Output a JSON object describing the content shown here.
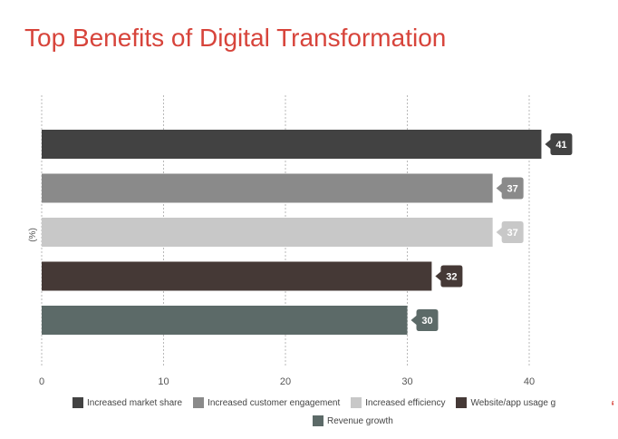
{
  "chart_data": {
    "type": "bar",
    "orientation": "horizontal",
    "title": "Top Benefits of Digital Transformation",
    "ylabel": "(%)",
    "xlabel": "",
    "xlim": [
      0,
      45
    ],
    "xticks": [
      0,
      10,
      20,
      30,
      40
    ],
    "grid": true,
    "legend_position": "bottom",
    "series": [
      {
        "name": "Increased market share",
        "value": 41,
        "color": "#424242"
      },
      {
        "name": "Increased customer engagement",
        "value": 37,
        "color": "#8a8a8a"
      },
      {
        "name": "Increased efficiency",
        "value": 37,
        "color": "#c8c8c8"
      },
      {
        "name": "Website/app usage g",
        "value": 32,
        "color": "#453936"
      },
      {
        "name": "Revenue growth",
        "value": 30,
        "color": "#5c6a68"
      }
    ]
  },
  "colors": {
    "title": "#d7443b",
    "grid": "#b9b9b9",
    "axis_text": "#555555"
  },
  "corner_mark": "‘"
}
